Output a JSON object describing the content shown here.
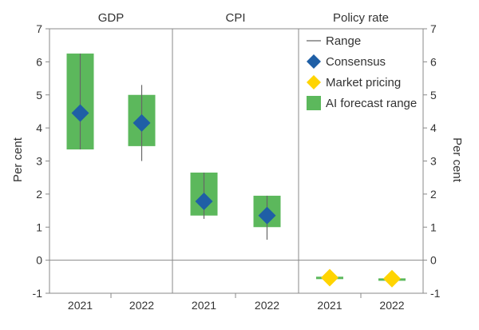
{
  "chart_data": {
    "type": "range-bar",
    "ylabel_left": "Per cent",
    "ylabel_right": "Per cent",
    "ylim": [
      -1,
      7
    ],
    "yticks": [
      -1,
      0,
      1,
      2,
      3,
      4,
      5,
      6,
      7
    ],
    "grid": false,
    "legend": {
      "placement": "top-right",
      "entries": [
        {
          "key": "range",
          "label": "Range"
        },
        {
          "key": "consensus",
          "label": "Consensus"
        },
        {
          "key": "market",
          "label": "Market pricing"
        },
        {
          "key": "ai",
          "label": "AI forecast range"
        }
      ]
    },
    "colors": {
      "ai_fill": "#5cb85c",
      "consensus": "#1f5fa6",
      "market": "#ffd400",
      "range_line": "#666666",
      "axis": "#888888"
    },
    "panels": [
      {
        "title": "GDP",
        "categories": [
          "2021",
          "2022"
        ],
        "range": [
          [
            3.35,
            6.25
          ],
          [
            3.0,
            5.3
          ]
        ],
        "ai_forecast_range": [
          [
            3.35,
            6.25
          ],
          [
            3.45,
            5.0
          ]
        ],
        "consensus": [
          4.45,
          4.15
        ]
      },
      {
        "title": "CPI",
        "categories": [
          "2021",
          "2022"
        ],
        "range": [
          [
            1.25,
            2.65
          ],
          [
            0.62,
            1.95
          ]
        ],
        "ai_forecast_range": [
          [
            1.35,
            2.65
          ],
          [
            1.0,
            1.95
          ]
        ],
        "consensus": [
          1.78,
          1.35
        ]
      },
      {
        "title": "Policy rate",
        "categories": [
          "2021",
          "2022"
        ],
        "range": [
          [
            -0.55,
            -0.5
          ],
          [
            -0.58,
            -0.55
          ]
        ],
        "ai_forecast_range": [
          [
            -0.56,
            -0.5
          ],
          [
            -0.58,
            -0.55
          ]
        ],
        "market_pricing": [
          -0.53,
          -0.56
        ]
      }
    ]
  }
}
